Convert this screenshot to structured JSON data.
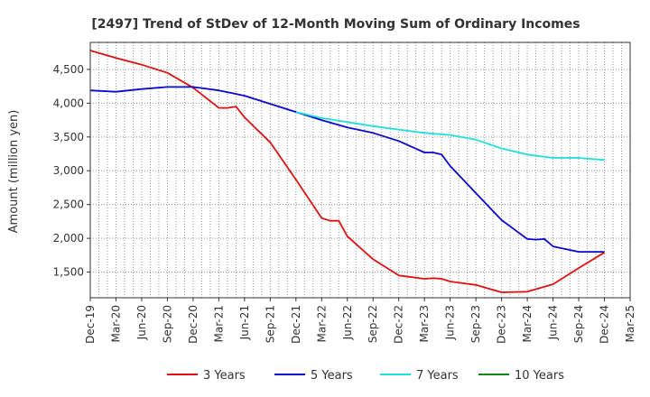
{
  "chart_data": {
    "type": "line",
    "title": "[2497]  Trend of StDev of 12-Month Moving Sum of Ordinary Incomes",
    "ylabel": "Amount (million yen)",
    "xlabel": "",
    "ylim": [
      1120,
      4900
    ],
    "yticks": [
      1500,
      2000,
      2500,
      3000,
      3500,
      4000,
      4500
    ],
    "ytick_labels": [
      "1,500",
      "2,000",
      "2,500",
      "3,000",
      "3,500",
      "4,000",
      "4,500"
    ],
    "xtick_labels": [
      "Dec-19",
      "Mar-20",
      "Jun-20",
      "Sep-20",
      "Dec-20",
      "Mar-21",
      "Jun-21",
      "Sep-21",
      "Dec-21",
      "Mar-22",
      "Jun-22",
      "Sep-22",
      "Dec-22",
      "Mar-23",
      "Jun-23",
      "Sep-23",
      "Dec-23",
      "Mar-24",
      "Jun-24",
      "Sep-24",
      "Dec-24",
      "Mar-25"
    ],
    "grid": true,
    "legend_position": "bottom",
    "series": [
      {
        "name": "3 Years",
        "color": "#dd1111",
        "points": [
          [
            "Dec-19",
            4780
          ],
          [
            "Mar-20",
            4670
          ],
          [
            "Jun-20",
            4570
          ],
          [
            "Sep-20",
            4450
          ],
          [
            "Dec-20",
            4230
          ],
          [
            "Mar-21",
            3930
          ],
          [
            "Apr-21",
            3930
          ],
          [
            "May-21",
            3950
          ],
          [
            "Jun-21",
            3790
          ],
          [
            "Sep-21",
            3420
          ],
          [
            "Dec-21",
            2870
          ],
          [
            "Mar-22",
            2300
          ],
          [
            "Apr-22",
            2260
          ],
          [
            "May-22",
            2260
          ],
          [
            "Jun-22",
            2030
          ],
          [
            "Sep-22",
            1690
          ],
          [
            "Dec-22",
            1450
          ],
          [
            "Mar-23",
            1400
          ],
          [
            "Apr-23",
            1410
          ],
          [
            "May-23",
            1400
          ],
          [
            "Jun-23",
            1360
          ],
          [
            "Sep-23",
            1310
          ],
          [
            "Dec-23",
            1200
          ],
          [
            "Mar-24",
            1210
          ],
          [
            "Jun-24",
            1320
          ],
          [
            "Sep-24",
            1560
          ],
          [
            "Dec-24",
            1790
          ]
        ]
      },
      {
        "name": "5 Years",
        "color": "#0a0acc",
        "points": [
          [
            "Dec-19",
            4190
          ],
          [
            "Mar-20",
            4170
          ],
          [
            "Jun-20",
            4210
          ],
          [
            "Sep-20",
            4240
          ],
          [
            "Dec-20",
            4240
          ],
          [
            "Mar-21",
            4190
          ],
          [
            "Jun-21",
            4110
          ],
          [
            "Sep-21",
            3990
          ],
          [
            "Dec-21",
            3870
          ],
          [
            "Mar-22",
            3750
          ],
          [
            "Jun-22",
            3640
          ],
          [
            "Sep-22",
            3560
          ],
          [
            "Dec-22",
            3440
          ],
          [
            "Mar-23",
            3270
          ],
          [
            "Apr-23",
            3270
          ],
          [
            "May-23",
            3240
          ],
          [
            "Jun-23",
            3070
          ],
          [
            "Sep-23",
            2670
          ],
          [
            "Dec-23",
            2270
          ],
          [
            "Mar-24",
            1990
          ],
          [
            "Apr-24",
            1980
          ],
          [
            "May-24",
            1990
          ],
          [
            "Jun-24",
            1880
          ],
          [
            "Sep-24",
            1800
          ],
          [
            "Dec-24",
            1800
          ]
        ]
      },
      {
        "name": "7 Years",
        "color": "#22dddd",
        "points": [
          [
            "Dec-21",
            3870
          ],
          [
            "Mar-22",
            3780
          ],
          [
            "Jun-22",
            3720
          ],
          [
            "Sep-22",
            3660
          ],
          [
            "Dec-22",
            3610
          ],
          [
            "Mar-23",
            3560
          ],
          [
            "Jun-23",
            3530
          ],
          [
            "Sep-23",
            3460
          ],
          [
            "Dec-23",
            3330
          ],
          [
            "Mar-24",
            3240
          ],
          [
            "Jun-24",
            3190
          ],
          [
            "Sep-24",
            3190
          ],
          [
            "Dec-24",
            3160
          ]
        ]
      },
      {
        "name": "10 Years",
        "color": "#118811",
        "points": []
      }
    ]
  }
}
